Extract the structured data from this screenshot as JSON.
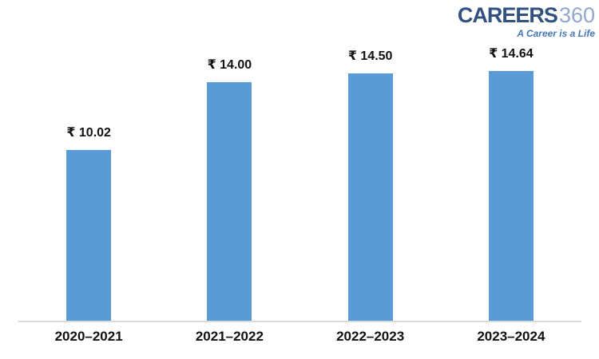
{
  "logo": {
    "brand": "CAREERS",
    "brand_suffix": "360",
    "tagline": "A Career is a Life",
    "brand_color": "#33517E",
    "suffix_color": "#8FA8CC",
    "tagline_color": "#4577B6"
  },
  "chart_data": {
    "type": "bar",
    "categories": [
      "2020–2021",
      "2021–2022",
      "2022–2023",
      "2023–2024"
    ],
    "values": [
      10.02,
      14.0,
      14.5,
      14.64
    ],
    "value_labels": [
      "₹ 10.02",
      "₹ 14.00",
      "₹ 14.50",
      "₹ 14.64"
    ],
    "currency_symbol": "₹",
    "title": "",
    "xlabel": "",
    "ylabel": "",
    "ylim": [
      0,
      16
    ],
    "grid": false,
    "legend": false,
    "bar_color": "#5B9BD5",
    "axis_line_color": "#D9D9D9",
    "label_color": "#111111",
    "background_color": "#FFFFFF"
  }
}
